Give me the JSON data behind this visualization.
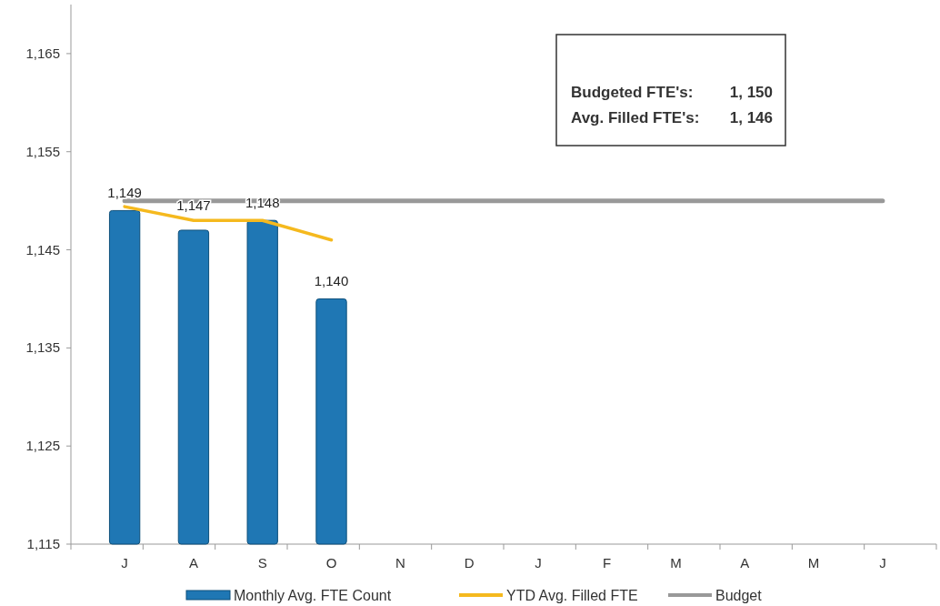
{
  "chart_data": {
    "type": "bar",
    "categories": [
      "J",
      "A",
      "S",
      "O",
      "N",
      "D",
      "J",
      "F",
      "M",
      "A",
      "M",
      "J"
    ],
    "series": [
      {
        "name": "Monthly Avg. FTE Count",
        "color": "#1f77b4",
        "values": [
          1149,
          1147,
          1148,
          1140,
          null,
          null,
          null,
          null,
          null,
          null,
          null,
          null
        ],
        "value_labels": [
          "1,149",
          "1,147",
          "1,148",
          "1,140",
          null,
          null,
          null,
          null,
          null,
          null,
          null,
          null
        ]
      },
      {
        "name": "YTD Avg. Filled FTE",
        "type": "line",
        "color": "#f5b91e",
        "values": [
          1149.4,
          1148,
          1148,
          1146,
          null,
          null,
          null,
          null,
          null,
          null,
          null,
          null
        ]
      },
      {
        "name": "Budget",
        "type": "line",
        "color": "#999999",
        "values": [
          1150,
          1150,
          1150,
          1150,
          1150,
          1150,
          1150,
          1150,
          1150,
          1150,
          1150,
          1150
        ]
      }
    ],
    "ylim": [
      1115,
      1170
    ],
    "yticks": [
      {
        "value": 1115,
        "label": "1,115"
      },
      {
        "value": 1125,
        "label": "1,125"
      },
      {
        "value": 1135,
        "label": "1,135"
      },
      {
        "value": 1145,
        "label": "1,145"
      },
      {
        "value": 1155,
        "label": "1,155"
      },
      {
        "value": 1165,
        "label": "1,165"
      }
    ],
    "annotations": [
      "Budgeted FTE's:",
      "1, 150",
      "Avg. Filled FTE's:",
      "1, 146"
    ],
    "legend": "bottom",
    "grid": false
  }
}
